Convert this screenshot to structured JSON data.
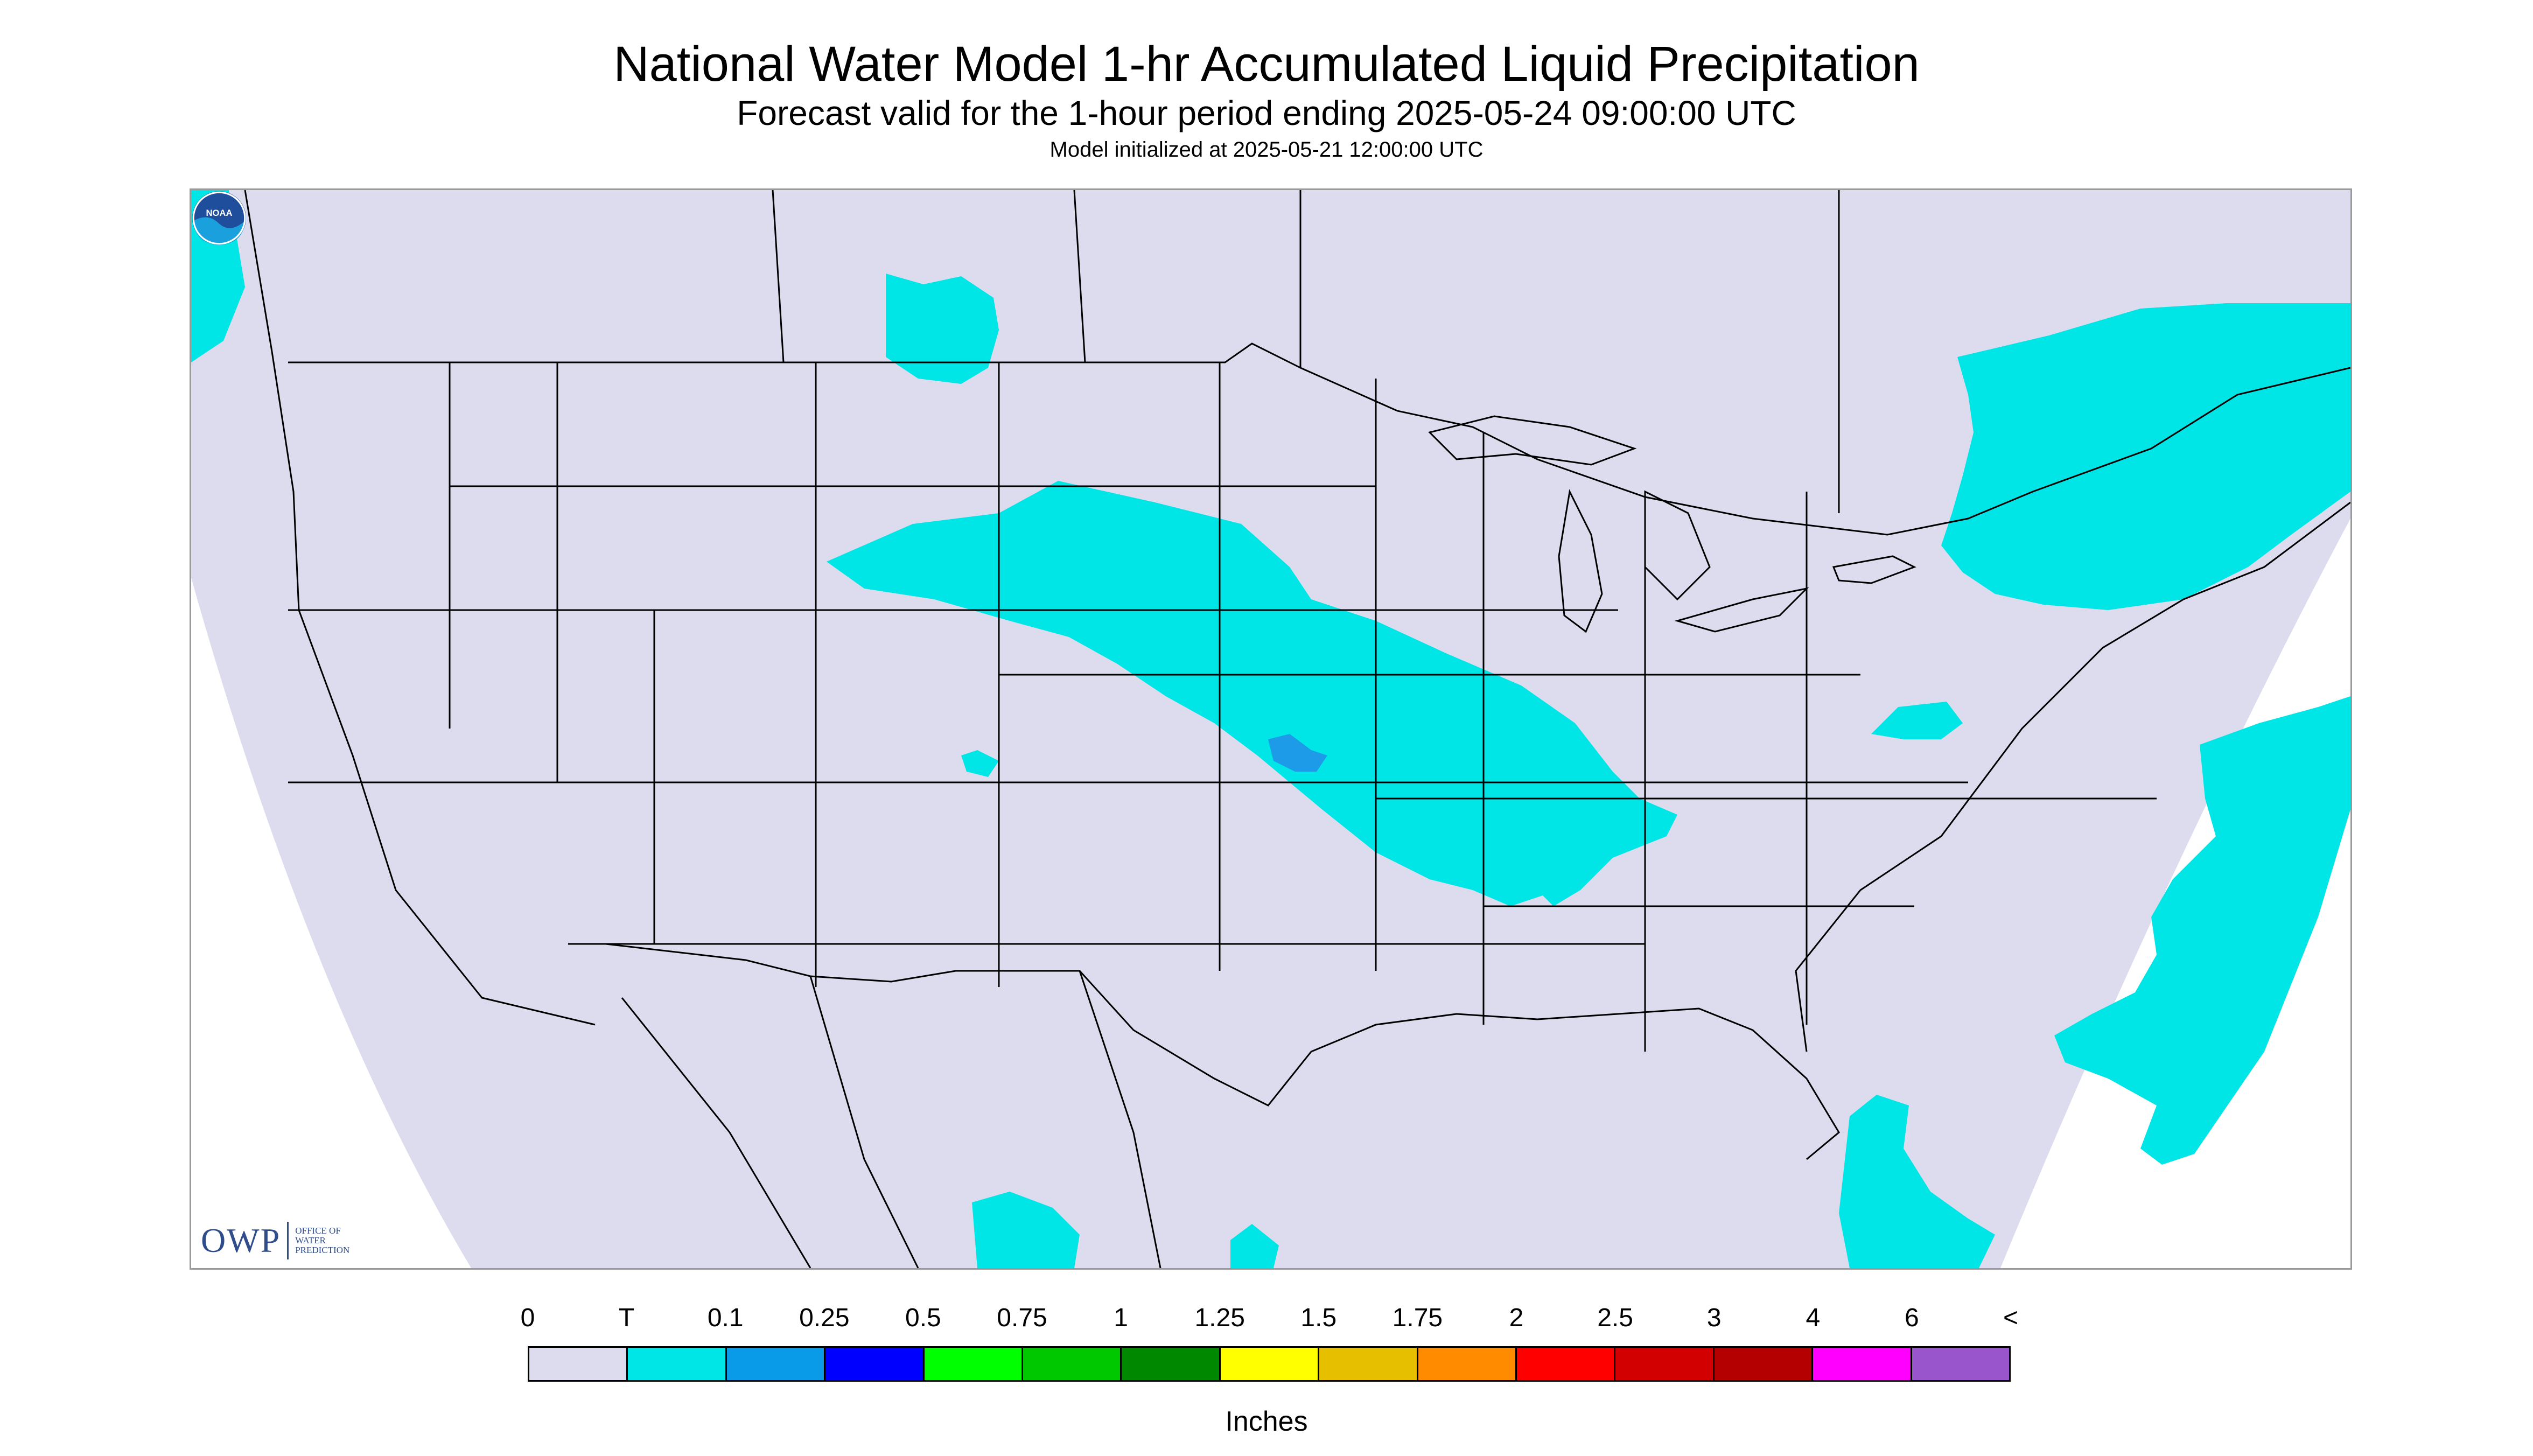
{
  "title": "National Water Model 1-hr Accumulated Liquid Precipitation",
  "subtitle": "Forecast valid for the 1-hour period ending 2025-05-24 09:00:00 UTC",
  "init_text": "Model initialized at 2025-05-21 12:00:00 UTC",
  "logos": {
    "owp_letters": "OWP",
    "owp_small": [
      "OFFICE OF",
      "WATER",
      "PREDICTION"
    ],
    "noaa_text": "NOAA"
  },
  "map": {
    "background_color": "#dcdcee",
    "outside_color": "#ffffff",
    "precip_color_light": "#00e5e5",
    "precip_color_blue": "#1e9be8",
    "border_color": "#000000"
  },
  "legend": {
    "labels": [
      "0",
      "T",
      "0.1",
      "0.25",
      "0.5",
      "0.75",
      "1",
      "1.25",
      "1.5",
      "1.75",
      "2",
      "2.5",
      "3",
      "4",
      "6",
      "<"
    ],
    "colors": [
      "#dcdcee",
      "#00e5e5",
      "#0a9be8",
      "#0000ff",
      "#00ff00",
      "#00c800",
      "#008800",
      "#ffff00",
      "#e6c000",
      "#ff8c00",
      "#ff0000",
      "#d20000",
      "#b40000",
      "#ff00ff",
      "#9955cc"
    ],
    "units": "Inches"
  }
}
